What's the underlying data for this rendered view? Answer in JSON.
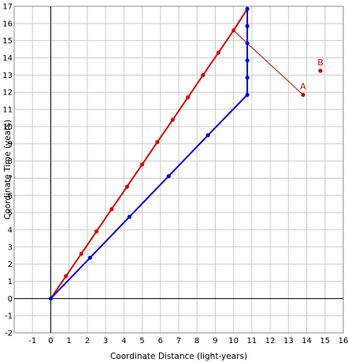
{
  "chart_data": {
    "type": "line",
    "xlabel": "Coordinate Distance (light-years)",
    "ylabel": "Coordinate Time (years)",
    "xlim": [
      -2,
      16
    ],
    "ylim": [
      -2,
      17
    ],
    "x_ticks": [
      -1,
      0,
      1,
      2,
      3,
      4,
      5,
      6,
      7,
      8,
      9,
      10,
      11,
      12,
      13,
      14,
      15,
      16
    ],
    "y_ticks": [
      -2,
      -1,
      0,
      1,
      2,
      3,
      4,
      5,
      6,
      7,
      8,
      9,
      10,
      11,
      12,
      13,
      14,
      15,
      16,
      17
    ],
    "grid": true,
    "legend": false,
    "colors": {
      "red": "#e00000",
      "blue": "#0000e0",
      "connector": "#cc0000",
      "grid": "#cccccc",
      "annotation": "#cc0000"
    },
    "series": [
      {
        "color": "red",
        "points": [
          [
            0,
            0
          ],
          [
            0.83,
            1.3
          ],
          [
            1.67,
            2.6
          ],
          [
            2.5,
            3.9
          ],
          [
            3.33,
            5.2
          ],
          [
            4.17,
            6.5
          ],
          [
            5,
            7.8
          ],
          [
            5.83,
            9.1
          ],
          [
            6.67,
            10.4
          ],
          [
            7.5,
            11.7
          ],
          [
            8.33,
            13
          ],
          [
            9.17,
            14.3
          ],
          [
            10,
            15.6
          ],
          [
            10.75,
            16.85
          ]
        ]
      },
      {
        "color": "blue",
        "points": [
          [
            0,
            0
          ],
          [
            2.15,
            2.37
          ],
          [
            4.3,
            4.75
          ],
          [
            6.45,
            7.12
          ],
          [
            8.6,
            9.5
          ],
          [
            10.75,
            11.85
          ],
          [
            10.75,
            12.85
          ],
          [
            10.75,
            13.85
          ],
          [
            10.75,
            14.85
          ],
          [
            10.75,
            15.85
          ],
          [
            10.75,
            16.85
          ]
        ]
      }
    ],
    "connector": {
      "color": "connector",
      "points": [
        [
          10,
          15.6
        ],
        [
          10.75,
          14.85
        ],
        [
          13.8,
          11.85
        ]
      ]
    },
    "annotations": [
      {
        "label": "A",
        "x": 13.8,
        "y": 11.85
      },
      {
        "label": "B",
        "x": 14.75,
        "y": 13.25
      }
    ]
  }
}
